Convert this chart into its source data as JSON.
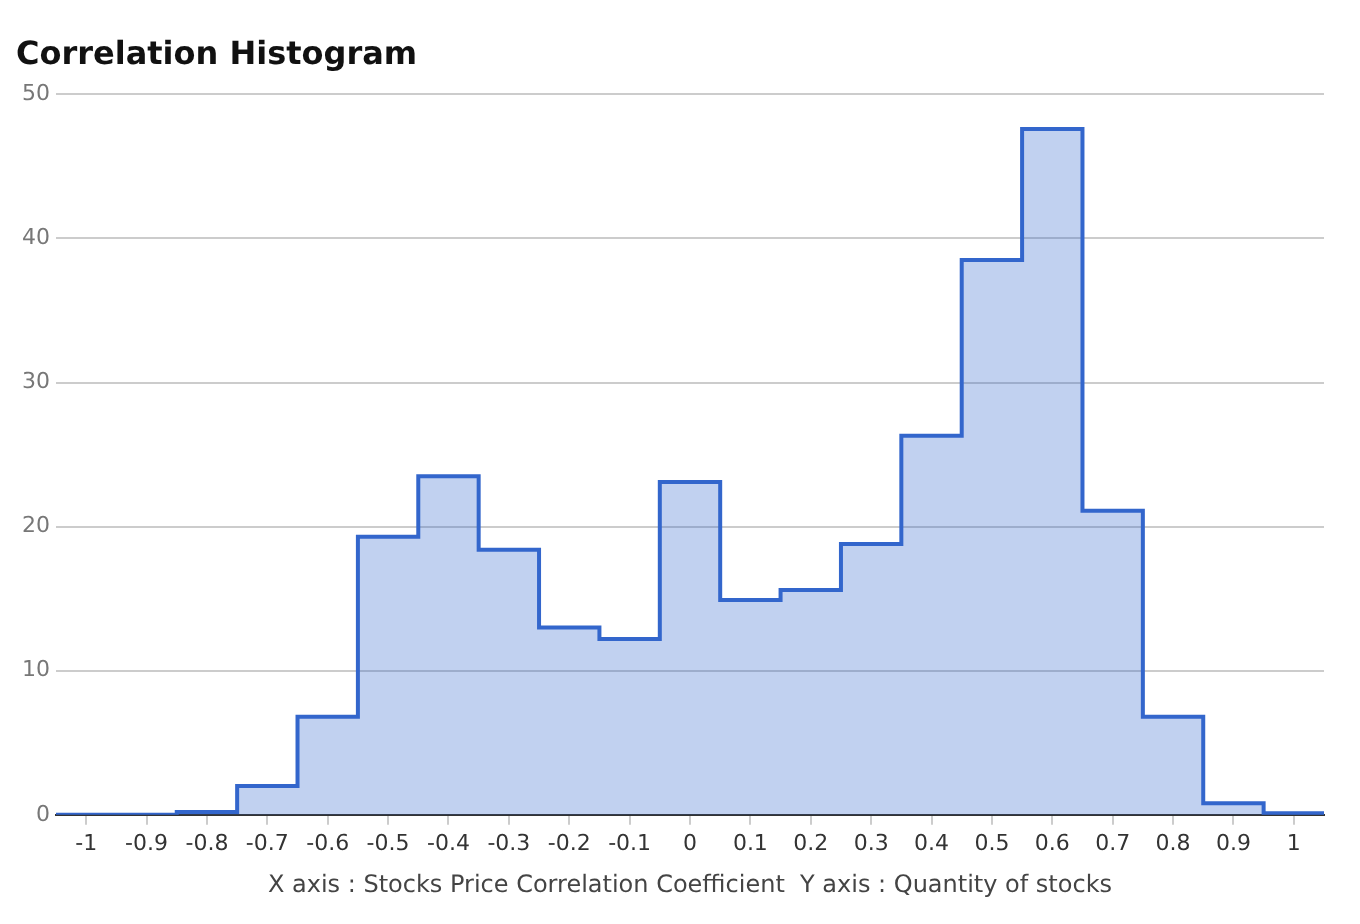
{
  "chart_data": {
    "type": "histogram",
    "title": "Correlation Histogram",
    "xlabel": "X axis : Stocks Price Correlation Coefficient  Y axis : Quantity of stocks",
    "bins": [
      -1.05,
      -0.95,
      -0.85,
      -0.75,
      -0.65,
      -0.55,
      -0.45,
      -0.35,
      -0.25,
      -0.15,
      -0.05,
      0.05,
      0.15,
      0.25,
      0.35,
      0.45,
      0.55,
      0.65,
      0.75,
      0.85,
      0.95,
      1.05
    ],
    "values": [
      0,
      0,
      0.2,
      2,
      6.8,
      19.3,
      23.5,
      18.4,
      13,
      12.2,
      23.1,
      14.9,
      15.6,
      18.8,
      26.3,
      38.5,
      47.6,
      21.1,
      6.8,
      0.8,
      0.1
    ],
    "color": "#3366cc",
    "xlim": [
      -1.05,
      1.05
    ],
    "xticks": [
      -1,
      -0.9,
      -0.8,
      -0.7,
      -0.6,
      -0.5,
      -0.4,
      -0.3,
      -0.2,
      -0.1,
      0,
      0.1,
      0.2,
      0.3,
      0.4,
      0.5,
      0.6,
      0.7,
      0.8,
      0.9,
      1
    ],
    "ylim": [
      0,
      50
    ],
    "yticks": [
      0,
      10,
      20,
      30,
      40,
      50
    ],
    "grid": "y"
  }
}
